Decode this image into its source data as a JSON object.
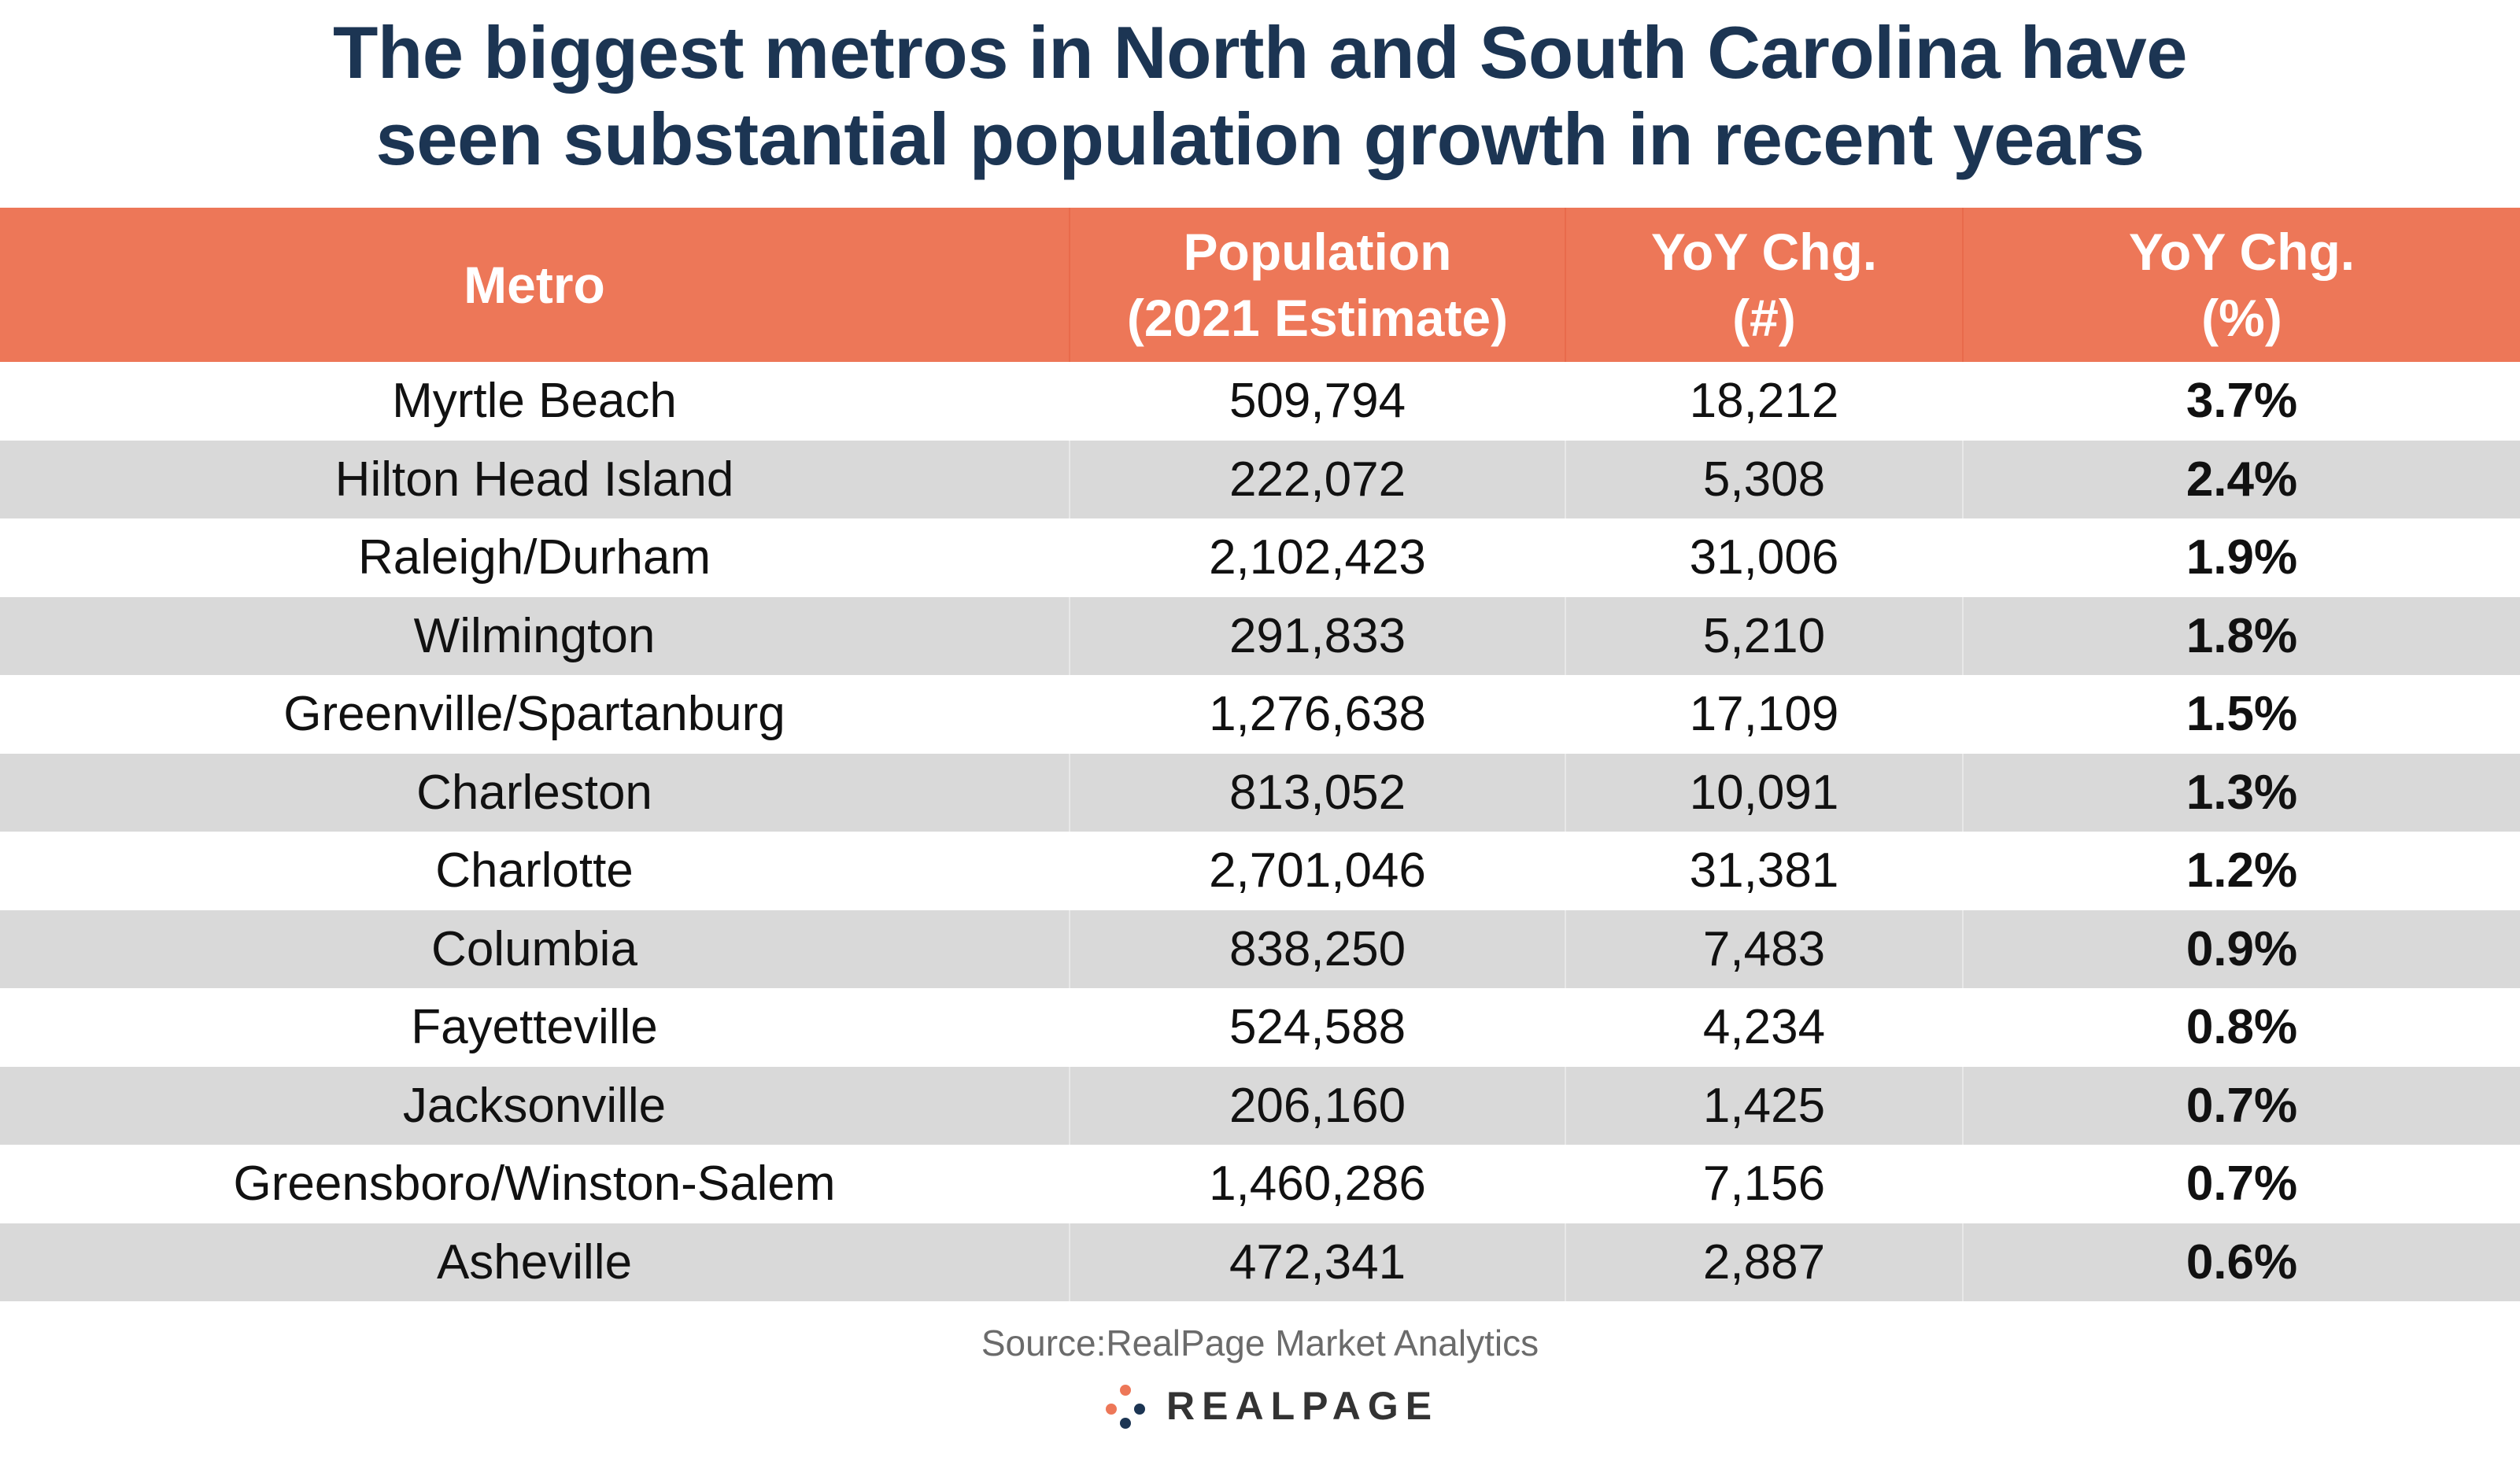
{
  "chart_data": {
    "type": "table",
    "title": "The biggest metros in North and South Carolina have seen substantial population growth in recent years",
    "columns": [
      "Metro",
      "Population\n(2021 Estimate)",
      "YoY Chg.\n(#)",
      "YoY Chg.\n(%)"
    ],
    "rows": [
      [
        "Myrtle Beach",
        "509,794",
        "18,212",
        "3.7%"
      ],
      [
        "Hilton Head Island",
        "222,072",
        "5,308",
        "2.4%"
      ],
      [
        "Raleigh/Durham",
        "2,102,423",
        "31,006",
        "1.9%"
      ],
      [
        "Wilmington",
        "291,833",
        "5,210",
        "1.8%"
      ],
      [
        "Greenville/Spartanburg",
        "1,276,638",
        "17,109",
        "1.5%"
      ],
      [
        "Charleston",
        "813,052",
        "10,091",
        "1.3%"
      ],
      [
        "Charlotte",
        "2,701,046",
        "31,381",
        "1.2%"
      ],
      [
        "Columbia",
        "838,250",
        "7,483",
        "0.9%"
      ],
      [
        "Fayetteville",
        "524,588",
        "4,234",
        "0.8%"
      ],
      [
        "Jacksonville",
        "206,160",
        "1,425",
        "0.7%"
      ],
      [
        "Greensboro/Winston-Salem",
        "1,460,286",
        "7,156",
        "0.7%"
      ],
      [
        "Asheville",
        "472,341",
        "2,887",
        "0.6%"
      ]
    ],
    "header_color": "#ed7758",
    "stripe_color": "#d9d9d9",
    "title_color": "#1c3553"
  },
  "source": "Source:RealPage Market Analytics",
  "logo": {
    "text": "REALPAGE",
    "mark_colors": [
      "#ed7758",
      "#1c3553"
    ],
    "icon": "realpage-dots-icon"
  }
}
